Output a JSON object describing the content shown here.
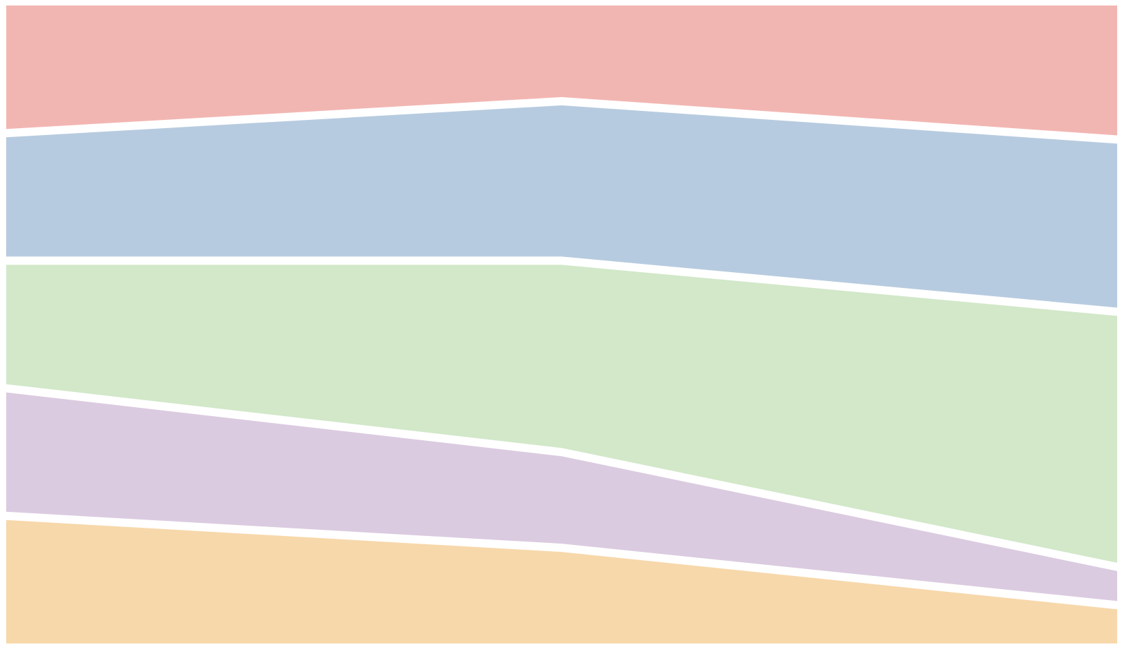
{
  "chart_data": {
    "type": "area",
    "layout": "stacked-100-percent",
    "title": "",
    "xlabel": "",
    "ylabel": "",
    "x": [
      0,
      1,
      2
    ],
    "ylim": [
      0,
      100
    ],
    "grid": false,
    "legend": "none",
    "series": [
      {
        "color": "#f7d8ab",
        "values": [
          20,
          15,
          6
        ]
      },
      {
        "color": "#dbcbe0",
        "values": [
          20,
          15,
          6
        ]
      },
      {
        "color": "#d2e8c9",
        "values": [
          20,
          30,
          40
        ]
      },
      {
        "color": "#b7cbe0",
        "values": [
          20,
          25,
          27
        ]
      },
      {
        "color": "#f2b6b2",
        "values": [
          20,
          15,
          21
        ]
      }
    ]
  }
}
